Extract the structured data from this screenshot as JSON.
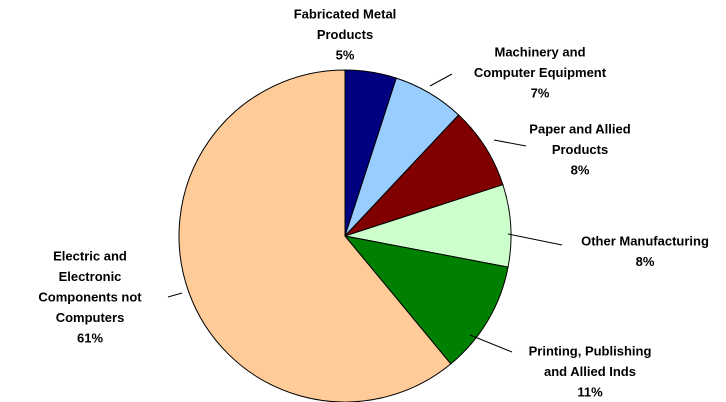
{
  "chart_data": {
    "type": "pie",
    "categories": [
      [
        "Fabricated Metal",
        "Products"
      ],
      [
        "Machinery and",
        "Computer Equipment"
      ],
      [
        "Paper and Allied",
        "Products"
      ],
      [
        "Other Manufacturing"
      ],
      [
        "Printing, Publishing",
        "and Allied Inds"
      ],
      [
        "Electric and",
        "Electronic",
        "Components not",
        "Computers"
      ]
    ],
    "values": [
      5,
      7,
      8,
      8,
      11,
      61
    ],
    "value_labels": [
      "5%",
      "7%",
      "8%",
      "8%",
      "11%",
      "61%"
    ],
    "colors": [
      "#000080",
      "#99ccff",
      "#800000",
      "#ccffcc",
      "#008000",
      "#ffcc99"
    ]
  }
}
